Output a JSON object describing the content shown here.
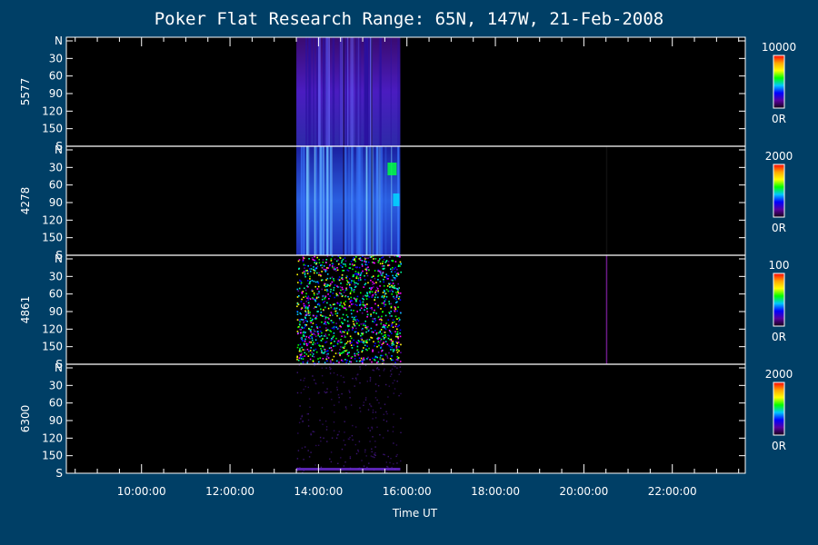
{
  "chart_data": {
    "type": "heatmap",
    "title": "Poker Flat Research Range: 65N, 147W, 21-Feb-2008",
    "xlabel": "Time UT",
    "x_unit": "hours UT",
    "xlim": [
      8.3,
      23.65
    ],
    "x_ticks": [
      10,
      12,
      14,
      16,
      18,
      20,
      22
    ],
    "x_tick_labels": [
      "10:00:00",
      "12:00:00",
      "14:00:00",
      "16:00:00",
      "18:00:00",
      "20:00:00",
      "22:00:00"
    ],
    "y_ticks": [
      0,
      30,
      60,
      90,
      120,
      150,
      180
    ],
    "y_tick_labels": [
      "N",
      "30",
      "60",
      "90",
      "120",
      "150",
      "S"
    ],
    "ylim": [
      0,
      180
    ],
    "observation_window": [
      13.5,
      15.85
    ],
    "panels": [
      {
        "wavelength": "5577",
        "colorbar_max": "10000",
        "colorbar_min": "0R",
        "intensity": "strong-purple",
        "late_streak": false
      },
      {
        "wavelength": "4278",
        "colorbar_max": "2000",
        "colorbar_min": "0R",
        "intensity": "strong-blue",
        "late_streak": true
      },
      {
        "wavelength": "4861",
        "colorbar_max": "100",
        "colorbar_min": "0R",
        "intensity": "noisy-speckle",
        "late_streak": true
      },
      {
        "wavelength": "6300",
        "colorbar_max": "2000",
        "colorbar_min": "0R",
        "intensity": "faint-sparse",
        "late_streak": false
      }
    ],
    "late_streak_time": 20.5,
    "colorbar_colors": [
      "#ff0000",
      "#ffa500",
      "#ffff00",
      "#00ff00",
      "#00c8ff",
      "#0000ff",
      "#5a00a0",
      "#140014"
    ],
    "background_color": "#003f66",
    "plot_background": "#000000"
  }
}
